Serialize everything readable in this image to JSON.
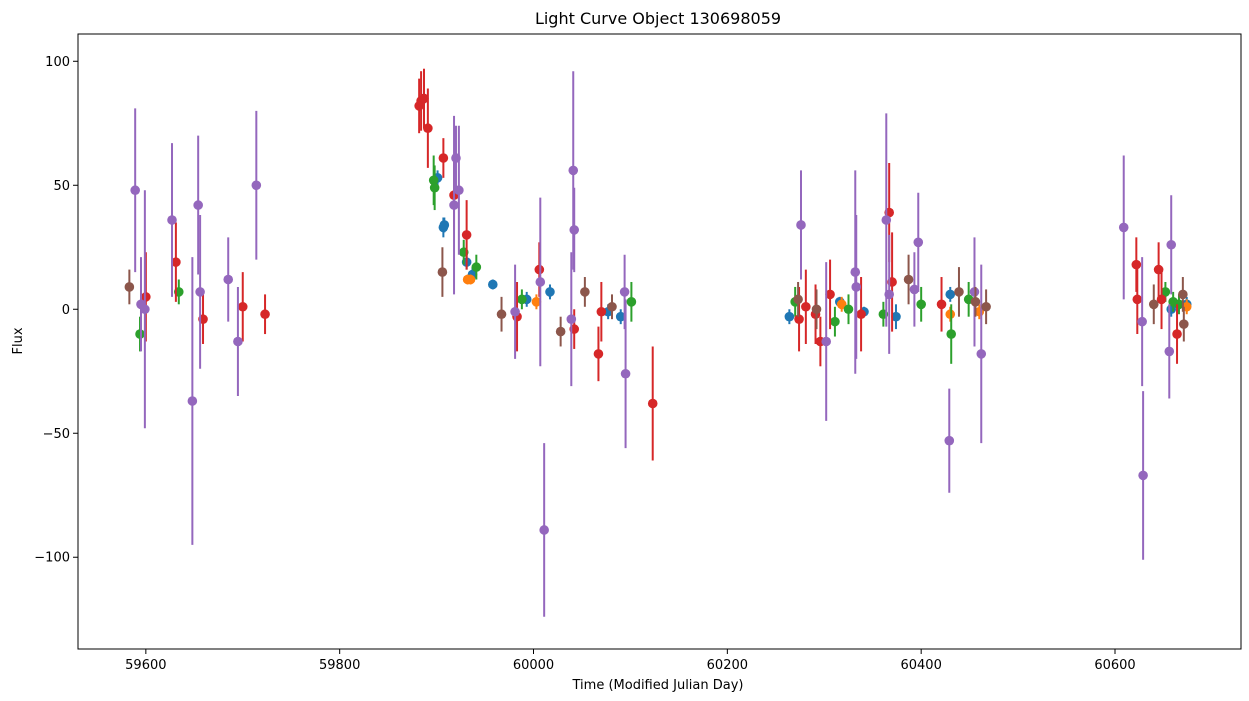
{
  "chart_data": {
    "type": "scatter",
    "title": "Light Curve Object 130698059",
    "xlabel": "Time (Modified Julian Day)",
    "ylabel": "Flux",
    "xlim": [
      59530,
      60730
    ],
    "ylim": [
      -137,
      111
    ],
    "x_ticks": [
      59600,
      59800,
      60000,
      60200,
      60400,
      60600
    ],
    "x_tick_labels": [
      "59600",
      "59800",
      "60000",
      "60200",
      "60400",
      "60600"
    ],
    "y_ticks": [
      -100,
      -50,
      0,
      50,
      100
    ],
    "y_tick_labels": [
      "−100",
      "−50",
      "0",
      "50",
      "100"
    ],
    "grid": false,
    "legend": "none",
    "series": [
      {
        "color": "#1f77b4",
        "points": [
          [
            59901,
            53,
            3
          ],
          [
            59907,
            33,
            4
          ],
          [
            59908,
            34,
            3
          ],
          [
            59931,
            19,
            3
          ],
          [
            59937,
            14,
            3
          ],
          [
            59958,
            10,
            2
          ],
          [
            59993,
            4,
            3
          ],
          [
            60017,
            7,
            3
          ],
          [
            60077,
            -1,
            3
          ],
          [
            60090,
            -3,
            3
          ],
          [
            60264,
            -3,
            3
          ],
          [
            60316,
            3,
            2
          ],
          [
            60341,
            -1,
            2
          ],
          [
            60374,
            -3,
            5
          ],
          [
            60430,
            6,
            3
          ],
          [
            60658,
            0,
            3
          ],
          [
            60674,
            2,
            3
          ]
        ]
      },
      {
        "color": "#ff7f0e",
        "points": [
          [
            59932,
            12,
            2
          ],
          [
            59935,
            12,
            2
          ],
          [
            60003,
            3,
            3
          ],
          [
            60318,
            2,
            3
          ],
          [
            60430,
            -2,
            3
          ],
          [
            60460,
            -1,
            3
          ],
          [
            60674,
            1,
            3
          ]
        ]
      },
      {
        "color": "#2ca02c",
        "points": [
          [
            59594,
            -10,
            7
          ],
          [
            59634,
            7,
            5
          ],
          [
            59897,
            52,
            10
          ],
          [
            59898,
            49,
            9
          ],
          [
            59928,
            23,
            5
          ],
          [
            59941,
            17,
            5
          ],
          [
            59988,
            4,
            4
          ],
          [
            60101,
            3,
            8
          ],
          [
            60270,
            3,
            6
          ],
          [
            60311,
            -5,
            6
          ],
          [
            60325,
            0,
            6
          ],
          [
            60361,
            -2,
            5
          ],
          [
            60400,
            2,
            7
          ],
          [
            60431,
            -10,
            12
          ],
          [
            60449,
            4,
            7
          ],
          [
            60652,
            7,
            4
          ],
          [
            60660,
            3,
            4
          ],
          [
            60666,
            2,
            4
          ]
        ]
      },
      {
        "color": "#d62728",
        "points": [
          [
            59600,
            5,
            18
          ],
          [
            59631,
            19,
            16
          ],
          [
            59659,
            -4,
            10
          ],
          [
            59700,
            1,
            14
          ],
          [
            59723,
            -2,
            8
          ],
          [
            59882,
            82,
            11
          ],
          [
            59884,
            84,
            12
          ],
          [
            59887,
            85,
            12
          ],
          [
            59891,
            73,
            16
          ],
          [
            59907,
            61,
            8
          ],
          [
            59918,
            46,
            14
          ],
          [
            59931,
            30,
            14
          ],
          [
            59983,
            -3,
            14
          ],
          [
            60006,
            16,
            11
          ],
          [
            60042,
            -8,
            8
          ],
          [
            60067,
            -18,
            11
          ],
          [
            60070,
            -1,
            12
          ],
          [
            60123,
            -38,
            23
          ],
          [
            60274,
            -4,
            13
          ],
          [
            60281,
            1,
            15
          ],
          [
            60291,
            -2,
            12
          ],
          [
            60296,
            -13,
            10
          ],
          [
            60306,
            6,
            14
          ],
          [
            60338,
            -2,
            15
          ],
          [
            60367,
            39,
            20
          ],
          [
            60370,
            11,
            20
          ],
          [
            60421,
            2,
            11
          ],
          [
            60622,
            18,
            11
          ],
          [
            60623,
            4,
            14
          ],
          [
            60645,
            16,
            11
          ],
          [
            60648,
            4,
            12
          ],
          [
            60664,
            -10,
            12
          ]
        ]
      },
      {
        "color": "#9467bd",
        "points": [
          [
            59589,
            48,
            33
          ],
          [
            59595,
            2,
            19
          ],
          [
            59599,
            0,
            48
          ],
          [
            59627,
            36,
            31
          ],
          [
            59648,
            -37,
            58
          ],
          [
            59654,
            42,
            28
          ],
          [
            59656,
            7,
            31
          ],
          [
            59685,
            12,
            17
          ],
          [
            59695,
            -13,
            22
          ],
          [
            59714,
            50,
            30
          ],
          [
            59918,
            42,
            36
          ],
          [
            59920,
            61,
            13
          ],
          [
            59923,
            48,
            26
          ],
          [
            59981,
            -1,
            19
          ],
          [
            60007,
            11,
            34
          ],
          [
            60011,
            -89,
            35
          ],
          [
            60039,
            -4,
            27
          ],
          [
            60041,
            56,
            40
          ],
          [
            60042,
            32,
            17
          ],
          [
            60094,
            7,
            15
          ],
          [
            60095,
            -26,
            30
          ],
          [
            60276,
            34,
            22
          ],
          [
            60302,
            -13,
            32
          ],
          [
            60332,
            15,
            41
          ],
          [
            60333,
            9,
            29
          ],
          [
            60364,
            36,
            43
          ],
          [
            60367,
            6,
            24
          ],
          [
            60393,
            8,
            15
          ],
          [
            60397,
            27,
            20
          ],
          [
            60429,
            -53,
            21
          ],
          [
            60455,
            7,
            22
          ],
          [
            60462,
            -18,
            36
          ],
          [
            60609,
            33,
            29
          ],
          [
            60628,
            -5,
            26
          ],
          [
            60629,
            -67,
            34
          ],
          [
            60656,
            -17,
            19
          ],
          [
            60658,
            26,
            20
          ]
        ]
      },
      {
        "color": "#8c564b",
        "points": [
          [
            59583,
            9,
            7
          ],
          [
            59906,
            15,
            10
          ],
          [
            59967,
            -2,
            7
          ],
          [
            60028,
            -9,
            6
          ],
          [
            60053,
            7,
            6
          ],
          [
            60081,
            1,
            5
          ],
          [
            60273,
            4,
            7
          ],
          [
            60292,
            0,
            8
          ],
          [
            60387,
            12,
            10
          ],
          [
            60439,
            7,
            10
          ],
          [
            60456,
            3,
            6
          ],
          [
            60467,
            1,
            7
          ],
          [
            60640,
            2,
            8
          ],
          [
            60670,
            6,
            7
          ],
          [
            60671,
            -6,
            7
          ]
        ]
      }
    ]
  }
}
